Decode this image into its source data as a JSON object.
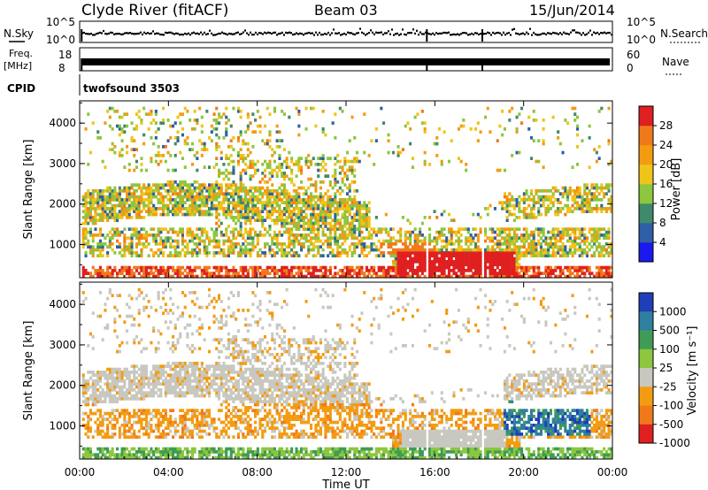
{
  "header": {
    "station": "Clyde River (fitACF)",
    "beam": "Beam 03",
    "date": "15/Jun/2014"
  },
  "strip_panels": {
    "nsky": {
      "left_label": "N.Sky",
      "left_ticks": [
        "10^5",
        "10^0"
      ],
      "right_label": "N.Search",
      "right_ticks": [
        "10^5",
        "10^0"
      ]
    },
    "freq": {
      "left_label": "Freq.",
      "left_unit": "[MHz]",
      "left_ticks": [
        "18",
        "8"
      ],
      "right_label": "Nave",
      "right_ticks": [
        "60",
        "0"
      ]
    },
    "cpid": {
      "label": "CPID",
      "value": "twofsound 3503"
    }
  },
  "chart_data": [
    {
      "type": "heatmap",
      "name": "power",
      "ylabel": "Slant Range [km]",
      "yticks": [
        "1000",
        "2000",
        "3000",
        "4000"
      ],
      "yticks_values": [
        1000,
        2000,
        3000,
        4000
      ],
      "ylim": [
        180,
        4550
      ],
      "xlim_hours": [
        0,
        24
      ],
      "colorbar": {
        "label": "Power [dB]",
        "ticks": [
          "4",
          "8",
          "12",
          "16",
          "20",
          "24",
          "28"
        ],
        "tick_values": [
          4,
          8,
          12,
          16,
          20,
          24,
          28
        ],
        "range": [
          0,
          32
        ],
        "colors": [
          "#1a1aee",
          "#2f5fa6",
          "#3e8a6a",
          "#8dc63f",
          "#f0c419",
          "#f39c12",
          "#f07a1a",
          "#e02020"
        ]
      },
      "gaps_hours": [
        15.6,
        18.1
      ]
    },
    {
      "type": "heatmap",
      "name": "velocity",
      "ylabel": "Slant Range [km]",
      "yticks": [
        "1000",
        "2000",
        "3000",
        "4000"
      ],
      "yticks_values": [
        1000,
        2000,
        3000,
        4000
      ],
      "ylim": [
        180,
        4550
      ],
      "xlim_hours": [
        0,
        24
      ],
      "colorbar": {
        "label": "Velocity [m s⁻¹]",
        "ticks": [
          "1000",
          "500",
          "100",
          "25",
          "-25",
          "-100",
          "-500",
          "-1000"
        ],
        "tick_values": [
          1000,
          500,
          100,
          25,
          -25,
          -100,
          -500,
          -1000
        ],
        "colors": [
          "#1e3fb8",
          "#2f7f9f",
          "#3f9b55",
          "#8dc63f",
          "#c8c8c0",
          "#f39c12",
          "#f07a1a",
          "#e02020"
        ]
      },
      "gaps_hours": [
        15.6,
        18.1
      ]
    }
  ],
  "time_axis": {
    "xlabel": "Time UT",
    "ticks": [
      "00:00",
      "04:00",
      "08:00",
      "12:00",
      "16:00",
      "20:00",
      "00:00"
    ],
    "tick_hours": [
      0,
      4,
      8,
      12,
      16,
      20,
      24
    ]
  }
}
